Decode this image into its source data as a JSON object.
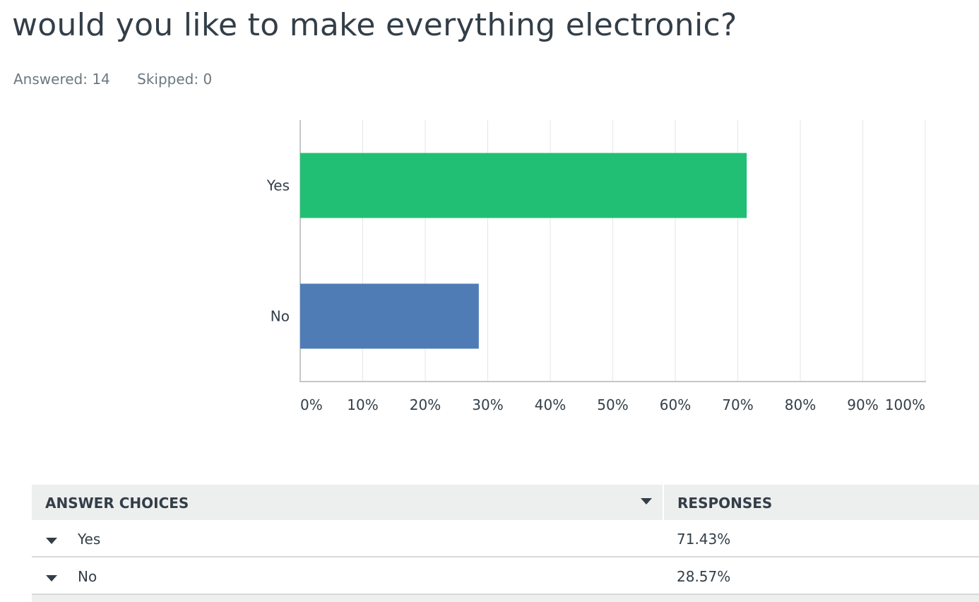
{
  "question": {
    "title": "would you like to make everything electronic?",
    "answered": "Answered: 14",
    "skipped": "Skipped: 0"
  },
  "chart_data": {
    "type": "bar",
    "orientation": "horizontal",
    "categories": [
      "Yes",
      "No"
    ],
    "values": [
      71.43,
      28.57
    ],
    "colors": [
      "#21bf73",
      "#507cb6"
    ],
    "xlim": [
      0,
      100
    ],
    "xticks": [
      "0%",
      "10%",
      "20%",
      "30%",
      "40%",
      "50%",
      "60%",
      "70%",
      "80%",
      "90%",
      "100%"
    ],
    "grid": true,
    "title": "",
    "xlabel": "",
    "ylabel": ""
  },
  "table": {
    "headers": {
      "choices": "ANSWER CHOICES",
      "responses": "RESPONSES"
    },
    "rows": [
      {
        "choice": "Yes",
        "response": "71.43%"
      },
      {
        "choice": "No",
        "response": "28.57%"
      }
    ]
  }
}
